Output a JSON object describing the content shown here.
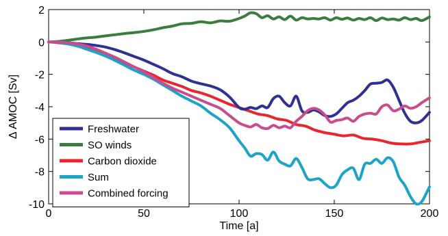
{
  "chart_data": {
    "type": "line",
    "title": "",
    "xlabel": "Time [a]",
    "ylabel": "Δ AMOC [Sv]",
    "xlim": [
      0,
      200
    ],
    "ylim": [
      -10,
      2
    ],
    "xticks": [
      0,
      50,
      100,
      150,
      200
    ],
    "yticks": [
      2,
      0,
      -2,
      -4,
      -6,
      -8,
      -10
    ],
    "grid": false,
    "legend_position": "bottom-left",
    "series": [
      {
        "name": "Freshwater",
        "color": "#2e3192",
        "points": [
          [
            0,
            0
          ],
          [
            5,
            -0.02
          ],
          [
            10,
            -0.05
          ],
          [
            15,
            -0.1
          ],
          [
            20,
            -0.15
          ],
          [
            25,
            -0.22
          ],
          [
            30,
            -0.32
          ],
          [
            35,
            -0.48
          ],
          [
            40,
            -0.68
          ],
          [
            45,
            -0.9
          ],
          [
            50,
            -1.12
          ],
          [
            55,
            -1.38
          ],
          [
            60,
            -1.65
          ],
          [
            65,
            -1.95
          ],
          [
            70,
            -2.15
          ],
          [
            75,
            -2.42
          ],
          [
            80,
            -2.58
          ],
          [
            85,
            -2.72
          ],
          [
            90,
            -2.95
          ],
          [
            95,
            -3.4
          ],
          [
            100,
            -4.05
          ],
          [
            103,
            -4.15
          ],
          [
            106,
            -4.05
          ],
          [
            109,
            -4.12
          ],
          [
            112,
            -3.95
          ],
          [
            115,
            -4.05
          ],
          [
            118,
            -3.5
          ],
          [
            121,
            -3.35
          ],
          [
            124,
            -3.75
          ],
          [
            127,
            -3.95
          ],
          [
            130,
            -3.35
          ],
          [
            133,
            -4.25
          ],
          [
            136,
            -4.35
          ],
          [
            139,
            -4.2
          ],
          [
            142,
            -4.32
          ],
          [
            145,
            -4.55
          ],
          [
            148,
            -4.6
          ],
          [
            151,
            -4.45
          ],
          [
            154,
            -4.1
          ],
          [
            157,
            -3.75
          ],
          [
            160,
            -3.6
          ],
          [
            163,
            -3.35
          ],
          [
            166,
            -3.0
          ],
          [
            169,
            -2.6
          ],
          [
            172,
            -2.55
          ],
          [
            175,
            -2.5
          ],
          [
            178,
            -2.35
          ],
          [
            181,
            -2.8
          ],
          [
            184,
            -3.6
          ],
          [
            187,
            -4.4
          ],
          [
            190,
            -4.9
          ],
          [
            193,
            -5.0
          ],
          [
            196,
            -4.85
          ],
          [
            200,
            -4.35
          ]
        ]
      },
      {
        "name": "SO winds",
        "color": "#3a7d3f",
        "points": [
          [
            0,
            0
          ],
          [
            5,
            0.03
          ],
          [
            10,
            0.1
          ],
          [
            15,
            0.18
          ],
          [
            20,
            0.25
          ],
          [
            25,
            0.3
          ],
          [
            30,
            0.38
          ],
          [
            35,
            0.45
          ],
          [
            40,
            0.52
          ],
          [
            45,
            0.58
          ],
          [
            50,
            0.65
          ],
          [
            55,
            0.75
          ],
          [
            60,
            0.88
          ],
          [
            65,
            0.98
          ],
          [
            70,
            1.12
          ],
          [
            75,
            1.15
          ],
          [
            80,
            1.25
          ],
          [
            85,
            1.18
          ],
          [
            90,
            1.3
          ],
          [
            95,
            1.28
          ],
          [
            100,
            1.45
          ],
          [
            103,
            1.6
          ],
          [
            106,
            1.8
          ],
          [
            109,
            1.75
          ],
          [
            112,
            1.5
          ],
          [
            115,
            1.62
          ],
          [
            118,
            1.42
          ],
          [
            121,
            1.55
          ],
          [
            124,
            1.38
          ],
          [
            127,
            1.6
          ],
          [
            130,
            1.35
          ],
          [
            133,
            1.5
          ],
          [
            136,
            1.42
          ],
          [
            139,
            1.45
          ],
          [
            142,
            1.42
          ],
          [
            145,
            1.5
          ],
          [
            148,
            1.35
          ],
          [
            151,
            1.5
          ],
          [
            154,
            1.4
          ],
          [
            157,
            1.48
          ],
          [
            160,
            1.35
          ],
          [
            163,
            1.45
          ],
          [
            166,
            1.38
          ],
          [
            169,
            1.5
          ],
          [
            172,
            1.32
          ],
          [
            175,
            1.48
          ],
          [
            178,
            1.38
          ],
          [
            181,
            1.42
          ],
          [
            184,
            1.35
          ],
          [
            187,
            1.5
          ],
          [
            190,
            1.38
          ],
          [
            193,
            1.45
          ],
          [
            196,
            1.32
          ],
          [
            200,
            1.55
          ]
        ]
      },
      {
        "name": "Carbon dioxide",
        "color": "#e8262d",
        "points": [
          [
            0,
            0
          ],
          [
            5,
            -0.05
          ],
          [
            10,
            -0.12
          ],
          [
            15,
            -0.25
          ],
          [
            20,
            -0.42
          ],
          [
            25,
            -0.62
          ],
          [
            30,
            -0.85
          ],
          [
            35,
            -1.05
          ],
          [
            40,
            -1.3
          ],
          [
            45,
            -1.55
          ],
          [
            50,
            -1.8
          ],
          [
            55,
            -2.05
          ],
          [
            60,
            -2.35
          ],
          [
            65,
            -2.55
          ],
          [
            70,
            -2.75
          ],
          [
            75,
            -3.0
          ],
          [
            80,
            -3.15
          ],
          [
            85,
            -3.35
          ],
          [
            90,
            -3.6
          ],
          [
            95,
            -3.85
          ],
          [
            100,
            -4.05
          ],
          [
            105,
            -4.25
          ],
          [
            110,
            -4.45
          ],
          [
            115,
            -4.55
          ],
          [
            120,
            -4.75
          ],
          [
            125,
            -4.85
          ],
          [
            130,
            -5.1
          ],
          [
            135,
            -5.2
          ],
          [
            140,
            -5.45
          ],
          [
            145,
            -5.6
          ],
          [
            150,
            -5.7
          ],
          [
            155,
            -5.8
          ],
          [
            160,
            -5.75
          ],
          [
            165,
            -5.95
          ],
          [
            170,
            -6.0
          ],
          [
            175,
            -6.1
          ],
          [
            180,
            -6.25
          ],
          [
            185,
            -6.3
          ],
          [
            190,
            -6.3
          ],
          [
            195,
            -6.2
          ],
          [
            200,
            -6.1
          ]
        ]
      },
      {
        "name": "Sum",
        "color": "#1ca3c8",
        "points": [
          [
            0,
            0
          ],
          [
            5,
            -0.03
          ],
          [
            10,
            -0.12
          ],
          [
            15,
            -0.25
          ],
          [
            20,
            -0.45
          ],
          [
            25,
            -0.65
          ],
          [
            30,
            -0.88
          ],
          [
            35,
            -1.15
          ],
          [
            40,
            -1.45
          ],
          [
            45,
            -1.75
          ],
          [
            50,
            -2.0
          ],
          [
            55,
            -2.3
          ],
          [
            60,
            -2.65
          ],
          [
            65,
            -3.0
          ],
          [
            70,
            -3.35
          ],
          [
            75,
            -3.65
          ],
          [
            80,
            -3.95
          ],
          [
            85,
            -4.4
          ],
          [
            90,
            -4.8
          ],
          [
            95,
            -5.3
          ],
          [
            100,
            -6.1
          ],
          [
            103,
            -6.55
          ],
          [
            106,
            -7.05
          ],
          [
            109,
            -6.9
          ],
          [
            112,
            -6.95
          ],
          [
            115,
            -7.3
          ],
          [
            118,
            -6.8
          ],
          [
            121,
            -7.35
          ],
          [
            124,
            -7.55
          ],
          [
            127,
            -7.65
          ],
          [
            130,
            -7.2
          ],
          [
            133,
            -7.75
          ],
          [
            136,
            -8.45
          ],
          [
            139,
            -8.5
          ],
          [
            142,
            -8.45
          ],
          [
            145,
            -8.75
          ],
          [
            148,
            -9.0
          ],
          [
            151,
            -8.85
          ],
          [
            154,
            -8.2
          ],
          [
            157,
            -7.9
          ],
          [
            160,
            -7.8
          ],
          [
            163,
            -8.5
          ],
          [
            166,
            -7.55
          ],
          [
            169,
            -7.5
          ],
          [
            172,
            -7.25
          ],
          [
            175,
            -7.5
          ],
          [
            178,
            -7.15
          ],
          [
            181,
            -7.4
          ],
          [
            184,
            -8.35
          ],
          [
            187,
            -8.85
          ],
          [
            190,
            -9.55
          ],
          [
            193,
            -10.0
          ],
          [
            196,
            -9.85
          ],
          [
            200,
            -8.95
          ]
        ]
      },
      {
        "name": "Combined forcing",
        "color": "#c94c8f",
        "points": [
          [
            0,
            0
          ],
          [
            5,
            0.0
          ],
          [
            10,
            -0.05
          ],
          [
            15,
            -0.12
          ],
          [
            20,
            -0.25
          ],
          [
            25,
            -0.45
          ],
          [
            30,
            -0.7
          ],
          [
            35,
            -0.95
          ],
          [
            40,
            -1.25
          ],
          [
            45,
            -1.55
          ],
          [
            50,
            -1.85
          ],
          [
            55,
            -2.2
          ],
          [
            60,
            -2.55
          ],
          [
            65,
            -2.85
          ],
          [
            70,
            -3.1
          ],
          [
            75,
            -3.35
          ],
          [
            80,
            -3.6
          ],
          [
            85,
            -3.85
          ],
          [
            90,
            -4.1
          ],
          [
            95,
            -4.55
          ],
          [
            100,
            -5.0
          ],
          [
            103,
            -5.15
          ],
          [
            106,
            -5.25
          ],
          [
            109,
            -5.1
          ],
          [
            112,
            -5.3
          ],
          [
            115,
            -5.35
          ],
          [
            118,
            -5.15
          ],
          [
            121,
            -5.3
          ],
          [
            124,
            -5.2
          ],
          [
            127,
            -5.3
          ],
          [
            130,
            -4.9
          ],
          [
            133,
            -4.6
          ],
          [
            136,
            -4.25
          ],
          [
            139,
            -4.1
          ],
          [
            142,
            -4.2
          ],
          [
            145,
            -4.5
          ],
          [
            148,
            -4.95
          ],
          [
            151,
            -4.85
          ],
          [
            154,
            -4.8
          ],
          [
            157,
            -4.7
          ],
          [
            160,
            -4.9
          ],
          [
            163,
            -4.6
          ],
          [
            166,
            -4.45
          ],
          [
            169,
            -4.4
          ],
          [
            172,
            -4.45
          ],
          [
            175,
            -4.0
          ],
          [
            178,
            -3.9
          ],
          [
            181,
            -4.25
          ],
          [
            184,
            -4.15
          ],
          [
            187,
            -3.95
          ],
          [
            190,
            -4.1
          ],
          [
            193,
            -4.0
          ],
          [
            196,
            -3.75
          ],
          [
            200,
            -3.45
          ]
        ]
      }
    ]
  }
}
